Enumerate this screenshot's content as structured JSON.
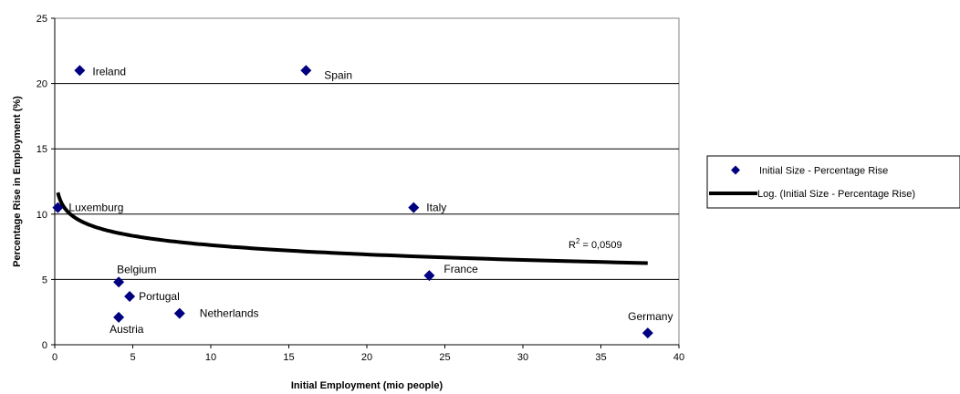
{
  "chart_data": {
    "type": "scatter",
    "xlabel": "Initial Employment (mio people)",
    "ylabel": "Percentage Rise in Employment (%)",
    "xlim": [
      0,
      40
    ],
    "ylim": [
      0,
      25
    ],
    "xticks": [
      "0",
      "5",
      "10",
      "15",
      "20",
      "25",
      "30",
      "35",
      "40"
    ],
    "yticks": [
      "0",
      "5",
      "10",
      "15",
      "20",
      "25"
    ],
    "grid": "horizontal",
    "legend_position": "right",
    "series": [
      {
        "name": "Initial Size - Percentage Rise",
        "marker": "diamond",
        "color": "#000080",
        "points": [
          {
            "label": "Ireland",
            "x": 1.6,
            "y": 21.0
          },
          {
            "label": "Spain",
            "x": 16.1,
            "y": 21.0
          },
          {
            "label": "Luxemburg",
            "x": 0.2,
            "y": 10.5
          },
          {
            "label": "Italy",
            "x": 23.0,
            "y": 10.5
          },
          {
            "label": "Belgium",
            "x": 4.1,
            "y": 4.8
          },
          {
            "label": "Portugal",
            "x": 4.8,
            "y": 3.7
          },
          {
            "label": "France",
            "x": 24.0,
            "y": 5.3
          },
          {
            "label": "Netherlands",
            "x": 8.0,
            "y": 2.4
          },
          {
            "label": "Austria",
            "x": 4.1,
            "y": 2.1
          },
          {
            "label": "Germany",
            "x": 38.0,
            "y": 0.9
          }
        ]
      },
      {
        "name": "Log. (Initial Size - Percentage Rise)",
        "type": "trendline-log",
        "color": "#000000",
        "x_range": [
          0.2,
          38.0
        ],
        "coeff_a": 10.0,
        "coeff_b": -1.03
      }
    ],
    "annotation": {
      "r2_prefix": "R",
      "r2_sup": "2",
      "r2_value": " = 0,0509"
    }
  }
}
